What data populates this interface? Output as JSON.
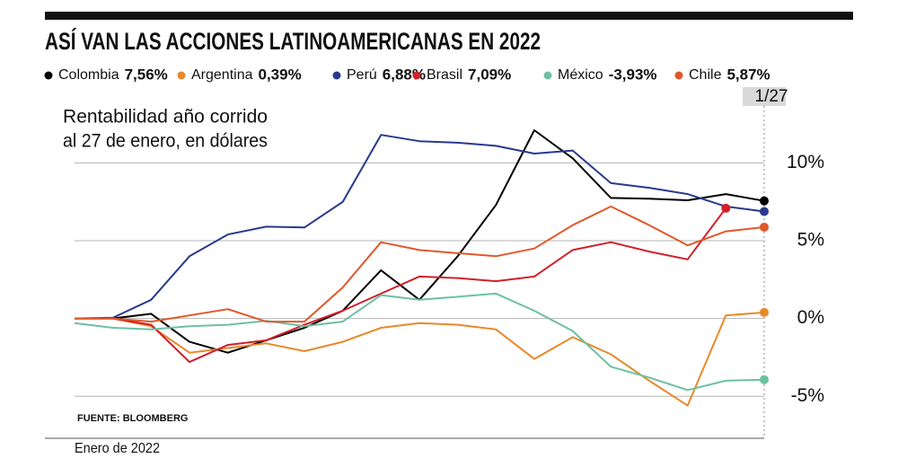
{
  "chart_data": {
    "type": "line",
    "title": "ASÍ VAN LAS ACCIONES LATINOAMERICANAS EN 2022",
    "subtitle": [
      "Rentabilidad año corrido",
      "al 27 de enero, en dólares"
    ],
    "source": "FUENTE: BLOOMBERG",
    "x_label": "Enero de 2022",
    "categories": [
      null,
      null,
      null,
      null,
      null,
      null,
      null,
      null,
      null,
      null,
      null,
      null,
      null,
      null,
      null,
      null,
      null,
      null,
      "1/27"
    ],
    "series": [
      {
        "name": "Colombia",
        "legend_label": "7,56%",
        "color": "#000000",
        "values": [
          0,
          0,
          0.3,
          -1.5,
          -2.2,
          -1.4,
          -0.6,
          0.5,
          3.1,
          1.2,
          4.0,
          7.3,
          12.1,
          10.3,
          7.75,
          7.7,
          7.6,
          8.0,
          7.56
        ]
      },
      {
        "name": "Argentina",
        "legend_label": "0,39%",
        "color": "#e8892a",
        "values": [
          0,
          0,
          -0.5,
          -2.2,
          -1.9,
          -1.6,
          -2.1,
          -1.5,
          -0.6,
          -0.3,
          -0.4,
          -0.7,
          -2.6,
          -1.2,
          -2.3,
          -4.0,
          -5.6,
          0.2,
          0.39
        ]
      },
      {
        "name": "Perú",
        "legend_label": "6,88%",
        "color": "#283a8c",
        "values": [
          0,
          0.05,
          1.2,
          4.0,
          5.4,
          5.9,
          5.85,
          7.5,
          11.8,
          11.4,
          11.3,
          11.1,
          10.6,
          10.8,
          8.7,
          8.4,
          8.0,
          7.2,
          6.88
        ]
      },
      {
        "name": "Brasil",
        "legend_label": "7,09%",
        "color": "#d0202a",
        "values": [
          0,
          0,
          -0.4,
          -2.8,
          -1.7,
          -1.4,
          -0.4,
          0.5,
          1.6,
          2.7,
          2.6,
          2.4,
          2.7,
          4.4,
          4.9,
          4.3,
          3.8,
          7.09,
          null
        ]
      },
      {
        "name": "México",
        "legend_label": "-3,93%",
        "color": "#6cc0a0",
        "values": [
          -0.3,
          -0.6,
          -0.7,
          -0.5,
          -0.4,
          -0.15,
          -0.5,
          -0.2,
          1.5,
          1.2,
          1.4,
          1.6,
          0.5,
          -0.8,
          -3.1,
          -3.8,
          -4.6,
          -4.0,
          -3.93
        ]
      },
      {
        "name": "Chile",
        "legend_label": "5,87%",
        "color": "#e0582a",
        "values": [
          0,
          0,
          -0.2,
          0.2,
          0.6,
          -0.2,
          -0.2,
          2.0,
          4.9,
          4.4,
          4.2,
          4.0,
          4.5,
          6.0,
          7.2,
          6.0,
          4.7,
          5.6,
          5.87
        ]
      }
    ],
    "ylim": [
      -7.7,
      14.7
    ],
    "yticks": [
      {
        "value": 10,
        "label": "10%"
      },
      {
        "value": 5,
        "label": "5%"
      },
      {
        "value": 0,
        "label": "0%"
      },
      {
        "value": -5,
        "label": "-5%"
      }
    ],
    "grid": true
  }
}
